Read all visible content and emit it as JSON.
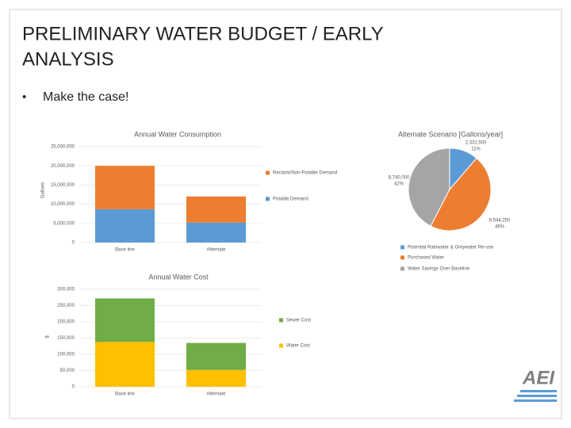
{
  "title_lines": [
    "PRELIMINARY WATER BUDGET / EARLY",
    "ANALYSIS"
  ],
  "bullets": [
    "Make the case!"
  ],
  "logo": "AEI",
  "chart_data": [
    {
      "type": "stacked_bar",
      "title": "Annual Water Consumption",
      "y_label": "Gallons",
      "categories": [
        "Base line",
        "Alternate"
      ],
      "series": [
        {
          "name": "Potable Demand",
          "color": "#5b9bd5",
          "values": [
            8700000,
            5200000
          ]
        },
        {
          "name": "Reclaim/Non-Potable Demand",
          "color": "#ed7d31",
          "values": [
            11300000,
            6800000
          ]
        }
      ],
      "ylim": [
        0,
        25000000
      ],
      "yticks": [
        0,
        {
          "value": 5000000,
          "label": "5,000,000"
        },
        {
          "value": 10000000,
          "label": "10,000,000"
        },
        {
          "value": 15000000,
          "label": "15,000,000"
        },
        {
          "value": 20000000,
          "label": "20,000,000"
        },
        {
          "value": 25000000,
          "label": "25,000,000"
        }
      ],
      "grid": true
    },
    {
      "type": "stacked_bar",
      "title": "Annual Water Cost",
      "y_label": "$",
      "categories": [
        "Base line",
        "Alternate"
      ],
      "series": [
        {
          "name": "Water Cost",
          "color": "#ffc000",
          "values": [
            138000,
            52000
          ]
        },
        {
          "name": "Sewer Cost",
          "color": "#70ad47",
          "values": [
            134000,
            83000
          ]
        }
      ],
      "ylim": [
        0,
        300000
      ],
      "yticks": [
        0,
        {
          "value": 50000,
          "label": "50,000"
        },
        {
          "value": 100000,
          "label": "100,000"
        },
        {
          "value": 150000,
          "label": "150,000"
        },
        {
          "value": 200000,
          "label": "200,000"
        },
        {
          "value": 250000,
          "label": "250,000"
        },
        {
          "value": 300000,
          "label": "300,000"
        }
      ],
      "grid": true
    },
    {
      "type": "pie",
      "title": "Alternate Scenario [Gallons/year]",
      "categories": [
        "Potential Rainwater & Greywater Re-use",
        "Purchased Water",
        "Water Savings Over Baseline"
      ],
      "values": [
        2332500,
        9544250,
        8740000
      ],
      "value_labels": [
        "2,332,500",
        "9,544,250",
        "8,740,000"
      ],
      "percent_labels": [
        "11%",
        "46%",
        "42%"
      ],
      "colors": [
        "#5b9bd5",
        "#ed7d31",
        "#a5a5a5"
      ]
    }
  ]
}
